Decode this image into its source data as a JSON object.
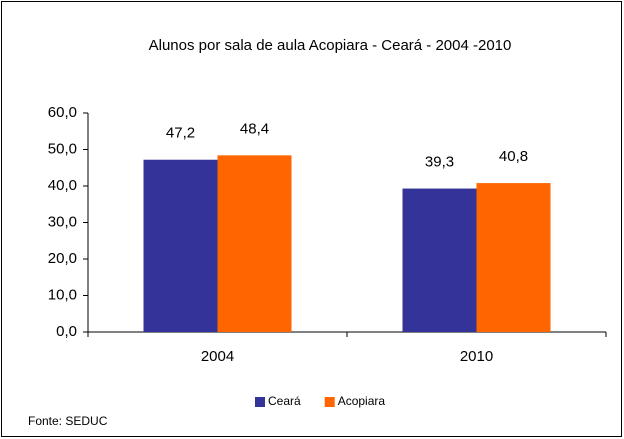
{
  "chart_data": {
    "type": "bar",
    "title": "Alunos por sala de aula Acopiara - Ceará - 2004 -2010",
    "categories": [
      "2004",
      "2010"
    ],
    "series": [
      {
        "name": "Ceará",
        "color": "#333399",
        "values": [
          47.2,
          39.3
        ],
        "value_labels": [
          "47,2",
          "39,3"
        ]
      },
      {
        "name": "Acopiara",
        "color": "#ff6600",
        "values": [
          48.4,
          40.8
        ],
        "value_labels": [
          "48,4",
          "40,8"
        ]
      }
    ],
    "ylim": [
      0,
      60
    ],
    "yticks": [
      {
        "value": 0,
        "label": "0,0"
      },
      {
        "value": 10,
        "label": "10,0"
      },
      {
        "value": 20,
        "label": "20,0"
      },
      {
        "value": 30,
        "label": "30,0"
      },
      {
        "value": 40,
        "label": "40,0"
      },
      {
        "value": 50,
        "label": "50,0"
      },
      {
        "value": 60,
        "label": "60,0"
      }
    ],
    "grid": false,
    "legend": "bottom",
    "source": "Fonte: SEDUC"
  }
}
